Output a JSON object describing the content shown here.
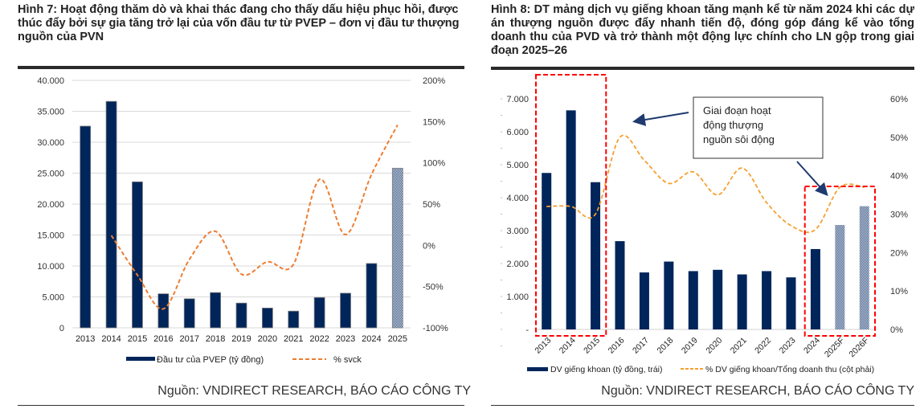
{
  "figure7": {
    "title": "Hình 7: Hoạt động thăm dò và khai thác đang cho thấy dấu hiệu phục hồi, được thúc đẩy bởi sự gia tăng trở lại của vốn đầu tư từ PVEP – đơn vị đầu tư thượng nguồn của PVN",
    "source": "Nguồn: VNDIRECT RESEARCH, BÁO CÁO CÔNG TY"
  },
  "figure8": {
    "title": "Hình 8: DT mảng dịch vụ giếng khoan tăng mạnh kể từ năm 2024 khi các dự án thượng nguồn được đẩy nhanh tiến độ, đóng góp đáng kể vào tổng doanh thu của PVD và trở thành một động lực chính cho LN gộp trong giai đoạn 2025–26",
    "source": "Nguồn: VNDIRECT RESEARCH, BÁO CÁO CÔNG TY",
    "annotation": [
      "Giai đoạn hoạt",
      "động thượng",
      "nguồn sôi động"
    ]
  },
  "colors": {
    "bar": "#00255a",
    "forecast_bar": "#8a9bb8",
    "line7": "#ed7d31",
    "line8": "#f5a030",
    "highlight": "#ff0000",
    "arrow": "#1f3a6e"
  },
  "chart_data": [
    {
      "type": "bar",
      "categories": [
        "2013",
        "2014",
        "2015",
        "2016",
        "2017",
        "2018",
        "2019",
        "2020",
        "2021",
        "2022",
        "2023",
        "2024",
        "2025"
      ],
      "series": [
        {
          "name": "Đầu tư của PVEP (tỷ đồng)",
          "type": "bar",
          "axis": "left",
          "values": [
            32600,
            36600,
            23600,
            5500,
            4700,
            5700,
            4000,
            3200,
            2700,
            4900,
            5600,
            10400,
            25800
          ]
        },
        {
          "name": "% svck",
          "type": "line",
          "axis": "right",
          "style": "dashed",
          "values": [
            null,
            12,
            -36,
            -77,
            -17,
            17,
            -35,
            -20,
            -23,
            80,
            13,
            86,
            146
          ]
        }
      ],
      "forecast_from": "2025",
      "yleft": {
        "min": 0,
        "max": 40000,
        "ticks": [
          "0",
          "5.000",
          "10.000",
          "15.000",
          "20.000",
          "25.000",
          "30.000",
          "35.000",
          "40.000"
        ]
      },
      "yright": {
        "min": -100,
        "max": 200,
        "ticks": [
          "-100%",
          "-50%",
          "0%",
          "50%",
          "100%",
          "150%",
          "200%"
        ]
      },
      "legend": [
        "Đầu tư của PVEP (tỷ đồng)",
        "% svck"
      ],
      "legend_position": "bottom",
      "grid": true
    },
    {
      "type": "bar",
      "categories": [
        "2013",
        "2014",
        "2015",
        "2016",
        "2017",
        "2018",
        "2019",
        "2020",
        "2021",
        "2022",
        "2023",
        "2024",
        "2025F",
        "2026F"
      ],
      "series": [
        {
          "name": "DV giếng khoan (tỷ đồng, trái)",
          "type": "bar",
          "axis": "left",
          "values": [
            4750,
            6650,
            4470,
            2680,
            1730,
            2060,
            1770,
            1810,
            1670,
            1770,
            1580,
            2440,
            3170,
            3740
          ]
        },
        {
          "name": "% DV giếng khoan/Tổng doanh thu (cột phải)",
          "type": "line",
          "axis": "right",
          "style": "dashed",
          "values": [
            32,
            32,
            30,
            50,
            44,
            38,
            41,
            35,
            42,
            33,
            27,
            26,
            37,
            37
          ]
        }
      ],
      "forecast_from": "2025F",
      "highlight_groups": [
        [
          "2013",
          "2015"
        ],
        [
          "2024",
          "2026F"
        ]
      ],
      "yleft": {
        "min": 0,
        "max": 7000,
        "ticks": [
          "-",
          "1.000",
          "2.000",
          "3.000",
          "4.000",
          "5.000",
          "6.000",
          "7.000"
        ]
      },
      "yright": {
        "min": 0,
        "max": 60,
        "ticks": [
          "0%",
          "10%",
          "20%",
          "30%",
          "40%",
          "50%",
          "60%"
        ]
      },
      "legend": [
        "DV giếng khoan (tỷ đồng, trái)",
        "% DV giếng khoan/Tổng doanh thu (cột phải)"
      ],
      "legend_position": "bottom",
      "grid": false
    }
  ]
}
